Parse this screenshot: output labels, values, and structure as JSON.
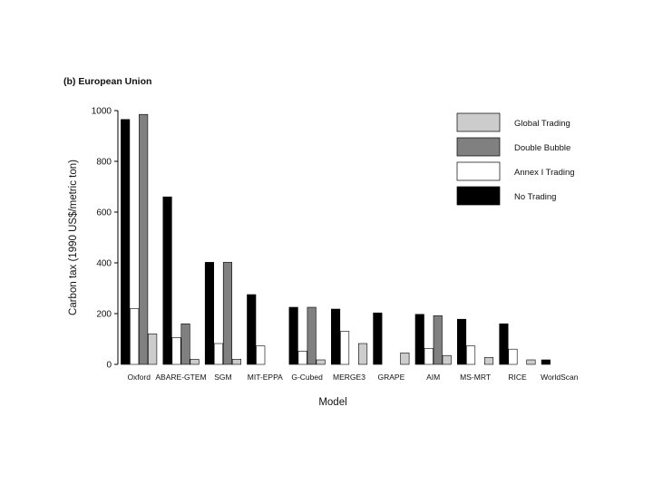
{
  "chart_data": {
    "type": "bar",
    "subtitle": "(b) European Union",
    "xlabel": "Model",
    "ylabel": "Carbon tax (1990 US$/metric ton)",
    "ylim": [
      0,
      1000
    ],
    "yticks": [
      0,
      200,
      400,
      600,
      800,
      1000
    ],
    "grid": false,
    "legend_position": "top-right",
    "categories": [
      "Oxford",
      "ABARE-GTEM",
      "SGM",
      "MIT-EPPA",
      "G-Cubed",
      "MERGE3",
      "GRAPE",
      "AIM",
      "MS-MRT",
      "RICE",
      "WorldScan"
    ],
    "series": [
      {
        "name": "No Trading",
        "color": "#000000",
        "values": [
          965,
          660,
          402,
          275,
          225,
          218,
          203,
          197,
          178,
          160,
          18
        ]
      },
      {
        "name": "Annex I Trading",
        "color": "#ffffff",
        "values": [
          220,
          105,
          82,
          73,
          52,
          130,
          0,
          63,
          73,
          60,
          0
        ]
      },
      {
        "name": "Double Bubble",
        "color": "#808080",
        "values": [
          985,
          160,
          402,
          0,
          225,
          0,
          0,
          192,
          0,
          0,
          0
        ]
      },
      {
        "name": "Global Trading",
        "color": "#cccccc",
        "values": [
          120,
          20,
          20,
          0,
          18,
          82,
          45,
          35,
          27,
          18,
          0
        ]
      }
    ],
    "legend_order": [
      "Global Trading",
      "Double Bubble",
      "Annex I Trading",
      "No Trading"
    ]
  }
}
